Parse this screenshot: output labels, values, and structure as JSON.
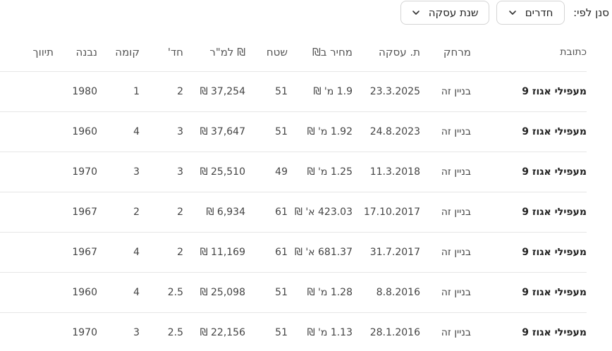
{
  "filter": {
    "label": "סנן לפי:",
    "rooms_dropdown": "חדרים",
    "year_dropdown": "שנת עסקה",
    "chevron_icon": "chevron-down-icon"
  },
  "table": {
    "headers": {
      "address": "כתובת",
      "distance": "מרחק",
      "date": "ת. עסקה",
      "price": "מחיר ב₪",
      "area": "שטח",
      "price_per_meter": "₪ למ\"ר",
      "rooms": "חד'",
      "floor": "קומה",
      "built": "נבנה",
      "broker": "תיווך"
    },
    "rows": [
      {
        "address": "מעפילי אגוז 9",
        "distance": "בניין זה",
        "date": "23.3.2025",
        "price": "1.9 מ' ₪",
        "area": "51",
        "price_per_meter": "37,254 ₪",
        "rooms": "2",
        "floor": "1",
        "built": "1980"
      },
      {
        "address": "מעפילי אגוז 9",
        "distance": "בניין זה",
        "date": "24.8.2023",
        "price": "1.92 מ' ₪",
        "area": "51",
        "price_per_meter": "37,647 ₪",
        "rooms": "3",
        "floor": "4",
        "built": "1960"
      },
      {
        "address": "מעפילי אגוז 9",
        "distance": "בניין זה",
        "date": "11.3.2018",
        "price": "1.25 מ' ₪",
        "area": "49",
        "price_per_meter": "25,510 ₪",
        "rooms": "3",
        "floor": "3",
        "built": "1970"
      },
      {
        "address": "מעפילי אגוז 9",
        "distance": "בניין זה",
        "date": "17.10.2017",
        "price": "423.03 א' ₪",
        "area": "61",
        "price_per_meter": "6,934 ₪",
        "rooms": "2",
        "floor": "2",
        "built": "1967"
      },
      {
        "address": "מעפילי אגוז 9",
        "distance": "בניין זה",
        "date": "31.7.2017",
        "price": "681.37 א' ₪",
        "area": "61",
        "price_per_meter": "11,169 ₪",
        "rooms": "2",
        "floor": "4",
        "built": "1967"
      },
      {
        "address": "מעפילי אגוז 9",
        "distance": "בניין זה",
        "date": "8.8.2016",
        "price": "1.28 מ' ₪",
        "area": "51",
        "price_per_meter": "25,098 ₪",
        "rooms": "2.5",
        "floor": "4",
        "built": "1960"
      },
      {
        "address": "מעפילי אגוז 9",
        "distance": "בניין זה",
        "date": "28.1.2016",
        "price": "1.13 מ' ₪",
        "area": "51",
        "price_per_meter": "22,156 ₪",
        "rooms": "2.5",
        "floor": "3",
        "built": "1970"
      }
    ]
  }
}
